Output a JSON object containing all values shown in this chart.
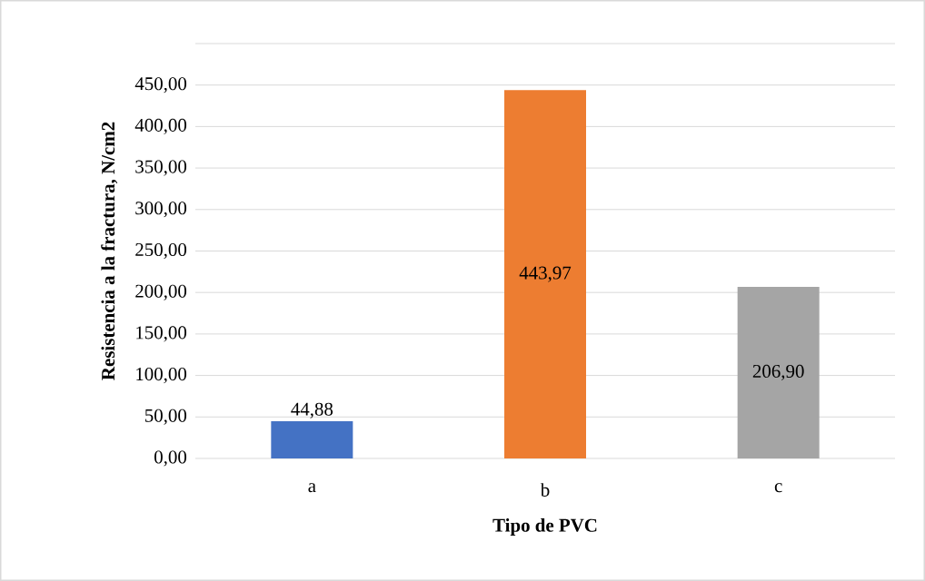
{
  "chart_data": {
    "type": "bar",
    "xlabel": "Tipo de PVC",
    "ylabel": "Resistencia a la fractura, N/cm2",
    "categories": [
      "a",
      "b",
      "c"
    ],
    "values": [
      44.88,
      443.97,
      206.9
    ],
    "colors": [
      "#4472c4",
      "#ed7d31",
      "#a5a5a5"
    ],
    "value_labels": [
      "44,88",
      "443,97",
      "206,90"
    ],
    "ylim": [
      0,
      500
    ],
    "yticks": [
      {
        "value": 0,
        "label": "0,00"
      },
      {
        "value": 50,
        "label": "50,00"
      },
      {
        "value": 100,
        "label": "100,00"
      },
      {
        "value": 150,
        "label": "150,00"
      },
      {
        "value": 200,
        "label": "200,00"
      },
      {
        "value": 250,
        "label": "250,00"
      },
      {
        "value": 300,
        "label": "300,00"
      },
      {
        "value": 350,
        "label": "350,00"
      },
      {
        "value": 400,
        "label": "400,00"
      },
      {
        "value": 450,
        "label": "450,00"
      },
      {
        "value": 500,
        "label": null
      }
    ],
    "grid": "y"
  }
}
